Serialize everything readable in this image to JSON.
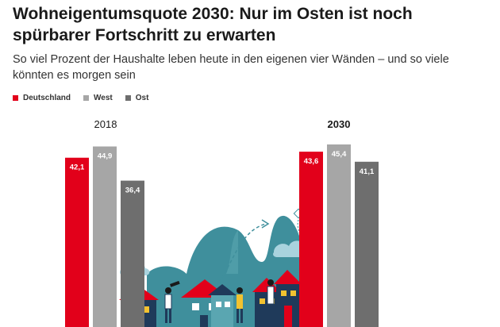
{
  "chart_data": {
    "type": "bar",
    "title": "Wohneigentumsquote 2030: Nur im Osten ist noch spürbarer Fortschritt zu erwarten",
    "subtitle": "So viel Prozent der Haushalte leben heute in den eigenen vier Wänden – und so viele könnten es morgen sein",
    "categories": [
      "2018",
      "2030"
    ],
    "series": [
      {
        "name": "Deutschland",
        "color": "#e2001a",
        "values": [
          42.1,
          43.6
        ],
        "labels": [
          "42,1",
          "43,6"
        ]
      },
      {
        "name": "West",
        "color": "#a6a6a6",
        "values": [
          44.9,
          45.4
        ],
        "labels": [
          "44,9",
          "45,4"
        ]
      },
      {
        "name": "Ost",
        "color": "#6e6e6e",
        "values": [
          36.4,
          41.1
        ],
        "labels": [
          "36,4",
          "41,1"
        ]
      }
    ],
    "legend_position": "top-left",
    "grid": false,
    "ylim": [
      0,
      45.4
    ]
  }
}
